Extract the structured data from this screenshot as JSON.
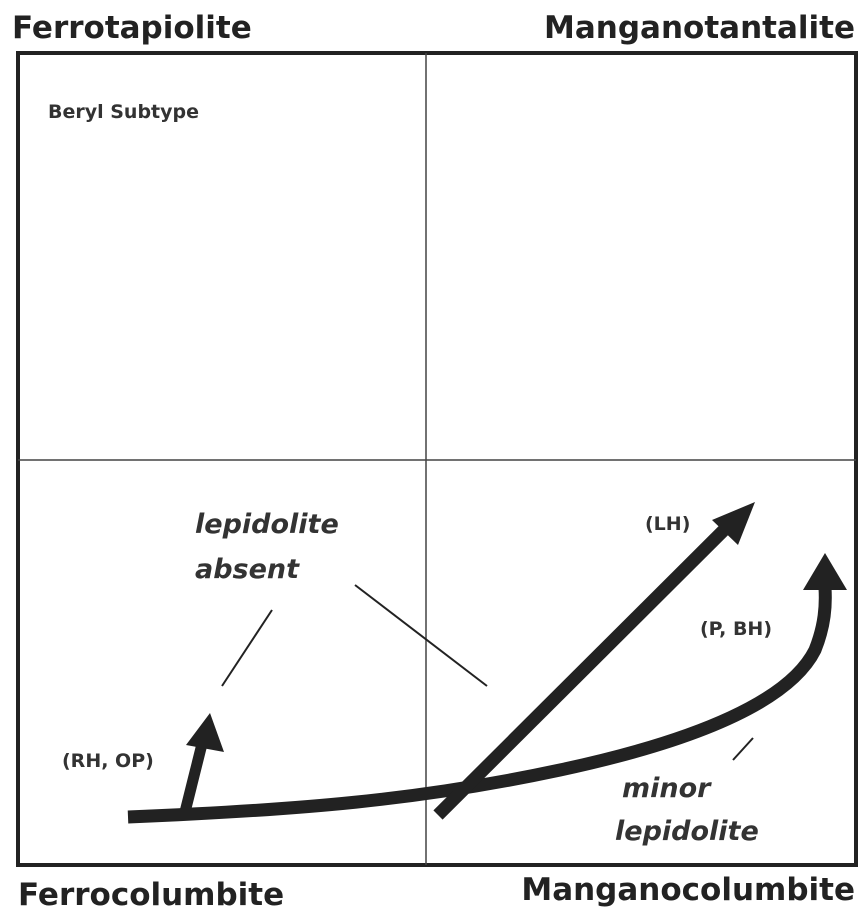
{
  "corners": {
    "top_left": "Ferrotapiolite",
    "top_right": "Manganotantalite",
    "bottom_left": "Ferrocolumbite",
    "bottom_right": "Manganocolumbite"
  },
  "subtype": "Beryl Subtype",
  "trends": [
    {
      "label": "(RH, OP)"
    },
    {
      "label": "(LH)"
    },
    {
      "label": "(P, BH)"
    }
  ],
  "annotations": {
    "lepidolite_absent": [
      "lepidolite",
      "absent"
    ],
    "minor_lepidolite": [
      "minor",
      "lepidolite"
    ]
  }
}
